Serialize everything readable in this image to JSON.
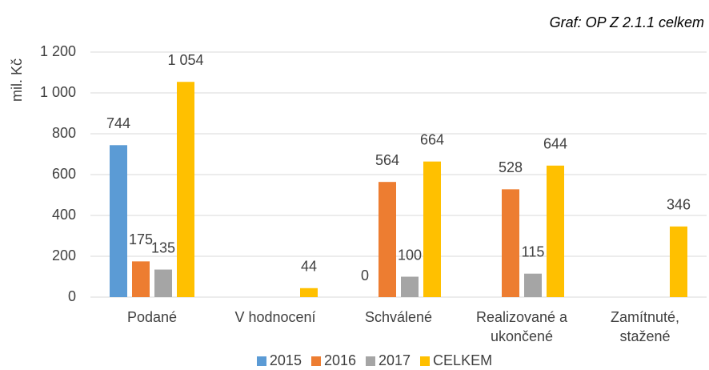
{
  "chart_data": {
    "type": "bar",
    "title": "Graf: OP Z 2.1.1 celkem",
    "y_label": "mil. Kč",
    "categories": [
      "Podané",
      "V hodnocení",
      "Schválené",
      "Realizované a ukončené",
      "Zamítnuté, stažené"
    ],
    "series": [
      {
        "name": "2015",
        "color": "#5b9bd5",
        "values": [
          744,
          null,
          0,
          null,
          null
        ]
      },
      {
        "name": "2016",
        "color": "#ed7d31",
        "values": [
          175,
          null,
          564,
          528,
          null
        ]
      },
      {
        "name": "2017",
        "color": "#a5a5a5",
        "values": [
          135,
          null,
          100,
          115,
          null
        ]
      },
      {
        "name": "CELKEM",
        "color": "#ffc000",
        "values": [
          1054,
          44,
          664,
          644,
          346
        ],
        "value_labels": [
          "1 054",
          "44",
          "664",
          "644",
          "346"
        ]
      }
    ],
    "ylim": [
      0,
      1200
    ],
    "yticks": [
      0,
      200,
      400,
      600,
      800,
      {
        "value": 1000,
        "label": "1 000"
      },
      {
        "value": 1200,
        "label": "1 200"
      }
    ],
    "grid": true,
    "legend": "bottom"
  }
}
